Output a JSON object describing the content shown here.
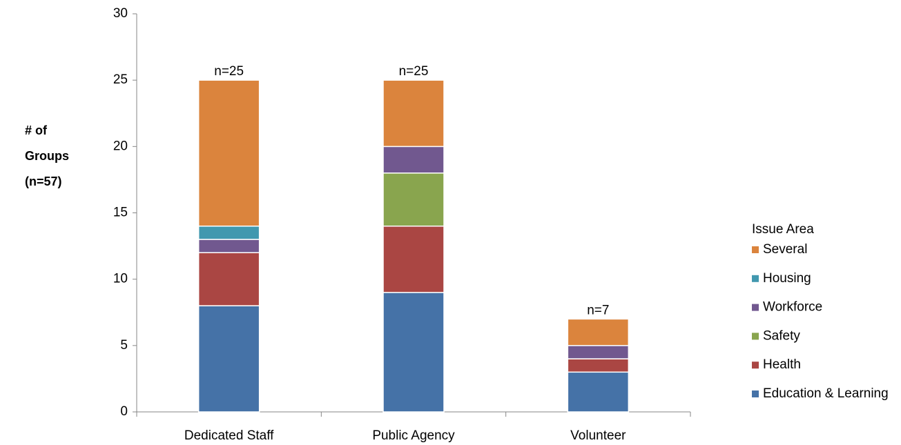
{
  "chart_data": {
    "type": "stacked_bar",
    "y_label": [
      "# of",
      "Groups",
      "(n=57)"
    ],
    "categories": [
      "Dedicated Staff",
      "Public Agency",
      "Volunteer"
    ],
    "series": [
      {
        "name": "Education & Learning",
        "color": "#4572a7",
        "values": [
          8,
          9,
          3
        ]
      },
      {
        "name": "Health",
        "color": "#aa4643",
        "values": [
          4,
          5,
          1
        ]
      },
      {
        "name": "Safety",
        "color": "#89a54e",
        "values": [
          0,
          4,
          0
        ]
      },
      {
        "name": "Workforce",
        "color": "#71588f",
        "values": [
          1,
          2,
          1
        ]
      },
      {
        "name": "Housing",
        "color": "#4198af",
        "values": [
          1,
          0,
          0
        ]
      },
      {
        "name": "Several",
        "color": "#db843d",
        "values": [
          11,
          5,
          2
        ]
      }
    ],
    "annotations": [
      "n=25",
      "n=25",
      "n=7"
    ],
    "legend_title": "Issue Area",
    "legend": "right",
    "ylim": [
      0,
      30
    ],
    "yticks": [
      0,
      5,
      10,
      15,
      20,
      25,
      30
    ]
  }
}
